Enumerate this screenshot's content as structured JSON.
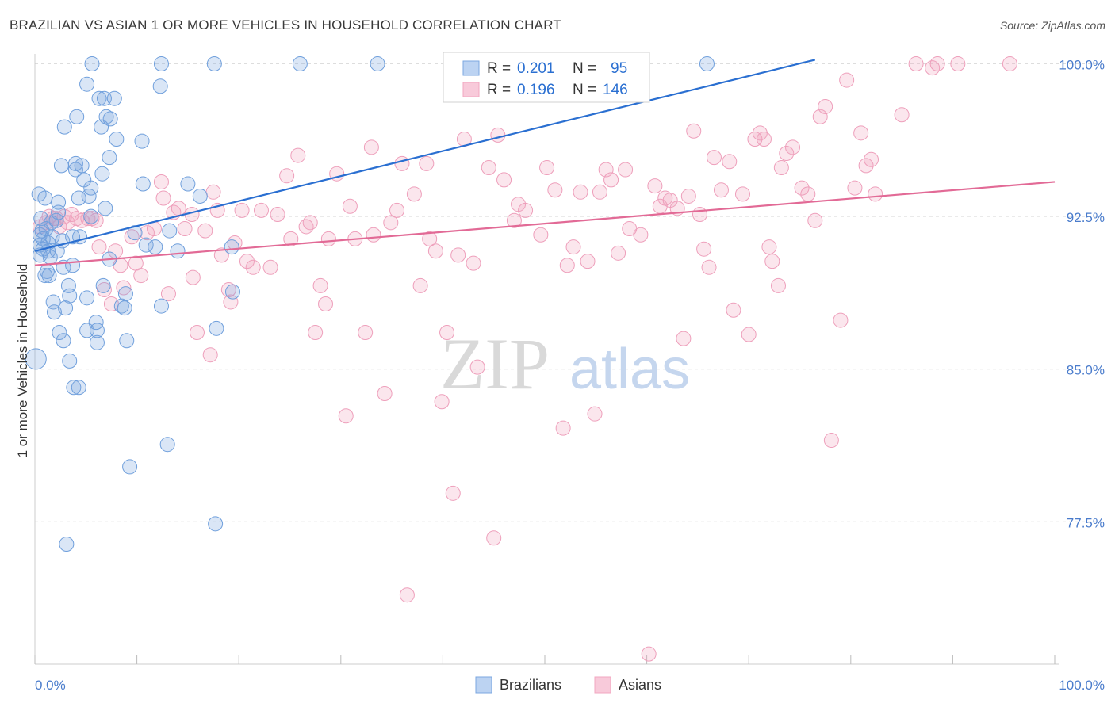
{
  "title": "BRAZILIAN VS ASIAN 1 OR MORE VEHICLES IN HOUSEHOLD CORRELATION CHART",
  "source": "Source: ZipAtlas.com",
  "watermark": {
    "zip": "ZIP",
    "atlas": "atlas"
  },
  "colors": {
    "blue": "#7ba7e0",
    "blue_line": "#2a6fd1",
    "pink": "#f2a7c0",
    "pink_line": "#e26a96",
    "tick_label": "#4a7ccc",
    "grid": "#dddddd"
  },
  "legend": {
    "rows": [
      {
        "r_label": "R =",
        "r_value": "0.201",
        "n_label": "N =",
        "n_value": "95"
      },
      {
        "r_label": "R =",
        "r_value": "0.196",
        "n_label": "N =",
        "n_value": "146"
      }
    ]
  },
  "chart_data": {
    "type": "scatter",
    "title": "BRAZILIAN VS ASIAN 1 OR MORE VEHICLES IN HOUSEHOLD CORRELATION CHART",
    "xlabel": "",
    "ylabel": "1 or more Vehicles in Household",
    "xlim": [
      0,
      100
    ],
    "ylim": [
      70.5,
      100.8
    ],
    "x_tick_labels": [
      "0.0%",
      "100.0%"
    ],
    "y_ticks": [
      {
        "value": 100.0,
        "label": "100.0%"
      },
      {
        "value": 92.5,
        "label": "92.5%"
      },
      {
        "value": 85.0,
        "label": "85.0%"
      },
      {
        "value": 77.5,
        "label": "77.5%"
      }
    ],
    "legend_position": "top-center",
    "series": [
      {
        "name": "Brazilians",
        "color": "#7ba7e0",
        "trend": {
          "x": [
            0,
            76.5
          ],
          "y": [
            90.8,
            100.2
          ]
        },
        "points": [
          [
            0.1,
            85.5
          ],
          [
            0.4,
            93.6
          ],
          [
            0.5,
            91.6
          ],
          [
            0.5,
            91.1
          ],
          [
            0.5,
            90.6
          ],
          [
            0.6,
            92.4
          ],
          [
            0.7,
            91.8
          ],
          [
            0.8,
            91.4
          ],
          [
            0.8,
            90.9
          ],
          [
            1.0,
            93.4
          ],
          [
            1.0,
            89.6
          ],
          [
            1.1,
            91.9
          ],
          [
            1.2,
            89.8
          ],
          [
            1.3,
            91.2
          ],
          [
            1.3,
            90.8
          ],
          [
            1.4,
            89.6
          ],
          [
            1.5,
            90.5
          ],
          [
            1.6,
            92.2
          ],
          [
            1.7,
            91.5
          ],
          [
            1.8,
            88.3
          ],
          [
            1.9,
            87.8
          ],
          [
            2.1,
            92.3
          ],
          [
            2.2,
            90.8
          ],
          [
            2.3,
            93.2
          ],
          [
            2.3,
            92.7
          ],
          [
            2.4,
            86.8
          ],
          [
            2.6,
            95.0
          ],
          [
            2.7,
            91.3
          ],
          [
            2.8,
            90.0
          ],
          [
            2.8,
            86.4
          ],
          [
            2.9,
            96.9
          ],
          [
            3.0,
            88.0
          ],
          [
            3.1,
            76.4
          ],
          [
            3.3,
            89.1
          ],
          [
            3.4,
            85.4
          ],
          [
            3.4,
            88.6
          ],
          [
            3.7,
            91.5
          ],
          [
            3.7,
            90.1
          ],
          [
            3.8,
            84.1
          ],
          [
            4.0,
            94.8
          ],
          [
            4.0,
            95.1
          ],
          [
            4.1,
            97.4
          ],
          [
            4.3,
            93.4
          ],
          [
            4.3,
            84.1
          ],
          [
            4.4,
            91.5
          ],
          [
            4.6,
            95.0
          ],
          [
            4.8,
            94.3
          ],
          [
            5.1,
            99.0
          ],
          [
            5.1,
            88.5
          ],
          [
            5.1,
            86.9
          ],
          [
            5.3,
            93.5
          ],
          [
            5.5,
            93.9
          ],
          [
            5.5,
            92.5
          ],
          [
            5.6,
            100.0
          ],
          [
            6.0,
            87.3
          ],
          [
            6.1,
            86.9
          ],
          [
            6.1,
            86.3
          ],
          [
            6.3,
            98.3
          ],
          [
            6.5,
            96.9
          ],
          [
            6.6,
            94.6
          ],
          [
            6.7,
            89.1
          ],
          [
            6.8,
            98.3
          ],
          [
            6.9,
            92.9
          ],
          [
            7.0,
            97.4
          ],
          [
            7.3,
            95.4
          ],
          [
            7.3,
            90.4
          ],
          [
            7.4,
            97.3
          ],
          [
            7.8,
            98.3
          ],
          [
            8.0,
            96.3
          ],
          [
            8.5,
            88.1
          ],
          [
            8.8,
            88.0
          ],
          [
            8.9,
            88.7
          ],
          [
            9.0,
            86.4
          ],
          [
            9.3,
            80.2
          ],
          [
            9.8,
            91.7
          ],
          [
            10.5,
            96.2
          ],
          [
            10.6,
            94.1
          ],
          [
            10.9,
            91.1
          ],
          [
            11.8,
            91.0
          ],
          [
            12.3,
            98.9
          ],
          [
            12.4,
            100.0
          ],
          [
            12.4,
            88.1
          ],
          [
            13.0,
            81.3
          ],
          [
            13.2,
            91.8
          ],
          [
            14.0,
            90.8
          ],
          [
            15.0,
            94.1
          ],
          [
            16.2,
            93.5
          ],
          [
            17.6,
            100.0
          ],
          [
            17.7,
            77.4
          ],
          [
            17.8,
            87.0
          ],
          [
            19.3,
            91.0
          ],
          [
            19.4,
            88.8
          ],
          [
            26.0,
            100.0
          ],
          [
            33.6,
            100.0
          ],
          [
            65.9,
            100.0
          ]
        ]
      },
      {
        "name": "Asians",
        "color": "#f2a7c0",
        "trend": {
          "x": [
            0,
            100
          ],
          "y": [
            90.1,
            94.2
          ]
        },
        "points": [
          [
            0.5,
            92.0
          ],
          [
            1.1,
            92.2
          ],
          [
            1.4,
            92.5
          ],
          [
            1.8,
            92.4
          ],
          [
            2.1,
            92.4
          ],
          [
            2.4,
            92.0
          ],
          [
            2.9,
            92.5
          ],
          [
            3.2,
            92.2
          ],
          [
            3.6,
            92.6
          ],
          [
            4.1,
            92.4
          ],
          [
            4.6,
            92.3
          ],
          [
            5.2,
            92.4
          ],
          [
            5.6,
            92.4
          ],
          [
            6.0,
            92.3
          ],
          [
            6.3,
            91.0
          ],
          [
            6.8,
            88.9
          ],
          [
            7.5,
            88.2
          ],
          [
            7.9,
            90.8
          ],
          [
            8.4,
            90.1
          ],
          [
            8.7,
            89.0
          ],
          [
            9.5,
            91.5
          ],
          [
            9.9,
            90.2
          ],
          [
            10.4,
            89.6
          ],
          [
            11.0,
            91.7
          ],
          [
            11.7,
            91.9
          ],
          [
            12.4,
            94.2
          ],
          [
            12.6,
            93.4
          ],
          [
            13.1,
            88.7
          ],
          [
            13.6,
            92.7
          ],
          [
            14.1,
            92.9
          ],
          [
            14.7,
            91.9
          ],
          [
            15.4,
            92.6
          ],
          [
            15.5,
            89.5
          ],
          [
            15.9,
            86.8
          ],
          [
            16.7,
            91.8
          ],
          [
            17.2,
            85.7
          ],
          [
            17.5,
            93.7
          ],
          [
            17.9,
            92.8
          ],
          [
            18.3,
            90.6
          ],
          [
            19.0,
            88.9
          ],
          [
            19.2,
            88.3
          ],
          [
            19.6,
            91.2
          ],
          [
            20.3,
            92.8
          ],
          [
            20.8,
            90.3
          ],
          [
            21.4,
            90.0
          ],
          [
            22.2,
            92.8
          ],
          [
            23.1,
            90.0
          ],
          [
            23.8,
            92.6
          ],
          [
            24.7,
            94.5
          ],
          [
            25.1,
            91.4
          ],
          [
            25.8,
            95.5
          ],
          [
            26.6,
            92.0
          ],
          [
            27.0,
            92.2
          ],
          [
            27.5,
            86.8
          ],
          [
            28.0,
            89.1
          ],
          [
            28.5,
            88.2
          ],
          [
            28.8,
            91.4
          ],
          [
            29.6,
            94.6
          ],
          [
            30.5,
            82.7
          ],
          [
            30.9,
            93.0
          ],
          [
            31.4,
            91.4
          ],
          [
            32.4,
            86.8
          ],
          [
            33.0,
            95.9
          ],
          [
            33.2,
            91.6
          ],
          [
            34.3,
            83.8
          ],
          [
            34.9,
            92.2
          ],
          [
            35.5,
            92.8
          ],
          [
            36.0,
            95.1
          ],
          [
            36.5,
            73.9
          ],
          [
            37.2,
            93.6
          ],
          [
            37.8,
            89.1
          ],
          [
            38.4,
            95.1
          ],
          [
            38.7,
            91.4
          ],
          [
            39.3,
            90.8
          ],
          [
            39.9,
            83.4
          ],
          [
            40.4,
            86.8
          ],
          [
            41.0,
            78.9
          ],
          [
            41.5,
            90.6
          ],
          [
            42.1,
            96.3
          ],
          [
            43.0,
            90.2
          ],
          [
            43.4,
            85.1
          ],
          [
            44.5,
            94.9
          ],
          [
            45.0,
            76.7
          ],
          [
            45.4,
            96.5
          ],
          [
            46.0,
            94.3
          ],
          [
            47.0,
            92.3
          ],
          [
            47.4,
            93.1
          ],
          [
            48.1,
            92.8
          ],
          [
            49.6,
            91.6
          ],
          [
            50.2,
            94.9
          ],
          [
            51.0,
            93.8
          ],
          [
            51.8,
            82.1
          ],
          [
            52.2,
            90.1
          ],
          [
            52.8,
            91.0
          ],
          [
            53.5,
            93.7
          ],
          [
            54.2,
            90.3
          ],
          [
            54.9,
            82.8
          ],
          [
            55.4,
            93.7
          ],
          [
            56.0,
            94.8
          ],
          [
            56.5,
            94.3
          ],
          [
            57.2,
            90.7
          ],
          [
            57.9,
            94.8
          ],
          [
            58.3,
            91.9
          ],
          [
            59.4,
            91.6
          ],
          [
            60.2,
            71.0
          ],
          [
            60.8,
            94.0
          ],
          [
            61.3,
            93.0
          ],
          [
            61.8,
            93.4
          ],
          [
            62.3,
            93.3
          ],
          [
            63.0,
            92.9
          ],
          [
            63.6,
            86.5
          ],
          [
            64.1,
            93.5
          ],
          [
            64.6,
            96.7
          ],
          [
            65.2,
            92.6
          ],
          [
            65.6,
            90.9
          ],
          [
            66.1,
            90.0
          ],
          [
            66.6,
            95.4
          ],
          [
            67.3,
            93.8
          ],
          [
            68.1,
            95.2
          ],
          [
            68.5,
            87.9
          ],
          [
            69.4,
            93.6
          ],
          [
            70.0,
            86.7
          ],
          [
            70.6,
            96.3
          ],
          [
            71.1,
            96.6
          ],
          [
            71.5,
            96.3
          ],
          [
            72.0,
            91.0
          ],
          [
            72.3,
            90.3
          ],
          [
            72.9,
            89.1
          ],
          [
            73.2,
            94.9
          ],
          [
            73.7,
            95.6
          ],
          [
            74.3,
            95.9
          ],
          [
            75.2,
            93.9
          ],
          [
            75.8,
            93.6
          ],
          [
            76.5,
            92.3
          ],
          [
            77.0,
            97.4
          ],
          [
            77.5,
            97.9
          ],
          [
            78.1,
            81.5
          ],
          [
            79.0,
            87.4
          ],
          [
            79.6,
            99.2
          ],
          [
            80.4,
            93.9
          ],
          [
            81.0,
            96.6
          ],
          [
            81.5,
            95.0
          ],
          [
            82.0,
            95.3
          ],
          [
            82.4,
            93.6
          ],
          [
            85.0,
            97.5
          ],
          [
            86.4,
            100.0
          ],
          [
            88.0,
            99.8
          ],
          [
            88.5,
            100.0
          ],
          [
            90.5,
            100.0
          ],
          [
            95.6,
            100.0
          ]
        ]
      }
    ]
  }
}
